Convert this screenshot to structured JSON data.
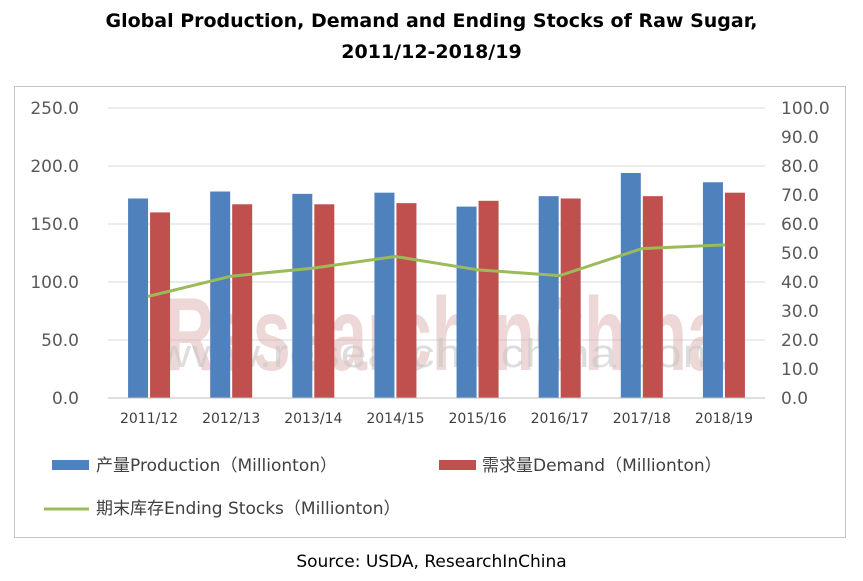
{
  "chart_data": {
    "type": "bar",
    "title_line1": "Global Production, Demand and Ending Stocks of Raw Sugar,",
    "title_line2": "2011/12-2018/19",
    "categories": [
      "2011/12",
      "2012/13",
      "2013/14",
      "2014/15",
      "2015/16",
      "2016/17",
      "2017/18",
      "2018/19"
    ],
    "series": [
      {
        "name": "产量Production（Millionton）",
        "kind": "bar",
        "axis": "left",
        "color": "#4f81bd",
        "values": [
          172,
          178,
          176,
          177,
          165,
          174,
          194,
          186
        ]
      },
      {
        "name": "需求量Demand（Millionton）",
        "kind": "bar",
        "axis": "left",
        "color": "#c0504d",
        "values": [
          160,
          167,
          167,
          168,
          170,
          172,
          174,
          177
        ]
      },
      {
        "name": "期末库存Ending Stocks（Millionton）",
        "kind": "line",
        "axis": "right",
        "color": "#9bbb59",
        "values": [
          35.1,
          42.0,
          44.8,
          48.8,
          44.2,
          42.2,
          51.5,
          52.8
        ]
      }
    ],
    "ylim_left": [
      0,
      250
    ],
    "yticks_left": [
      "0.0",
      "50.0",
      "100.0",
      "150.0",
      "200.0",
      "250.0"
    ],
    "ylim_right": [
      0,
      100
    ],
    "yticks_right": [
      "0.0",
      "10.0",
      "20.0",
      "30.0",
      "40.0",
      "50.0",
      "60.0",
      "70.0",
      "80.0",
      "90.0",
      "100.0"
    ],
    "grid": true,
    "legend_position": "bottom",
    "watermark": "ResearchInChina",
    "watermark_url": "www.researchinchina.com"
  },
  "source": "Source: USDA, ResearchInChina"
}
